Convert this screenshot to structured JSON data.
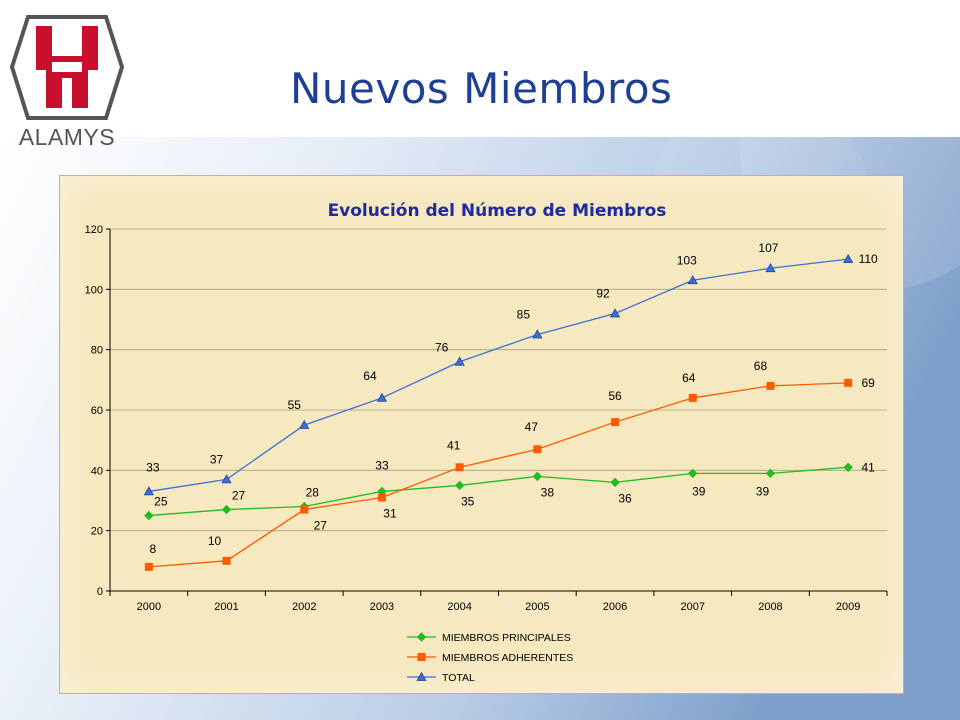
{
  "slide": {
    "title": "Nuevos Miembros",
    "logo_text": "ALAMYS"
  },
  "colors": {
    "title": "#1f3f93",
    "logo_red": "#c8102e",
    "logo_gray": "#555555",
    "chart_bg": "#f6e8bf",
    "chart_title": "#1e2aa0"
  },
  "chart_data": {
    "type": "line",
    "title": "Evolución del Número de Miembros",
    "xlabel": "",
    "ylabel": "",
    "categories": [
      "2000",
      "2001",
      "2002",
      "2003",
      "2004",
      "2005",
      "2006",
      "2007",
      "2008",
      "2009"
    ],
    "ylim": [
      0,
      120
    ],
    "yticks": [
      0,
      20,
      40,
      60,
      80,
      100,
      120
    ],
    "grid": true,
    "legend": "bottom",
    "series": [
      {
        "name": "MIEMBROS PRINCIPALES",
        "color": "#22bb22",
        "marker": "diamond",
        "values": [
          25,
          27,
          28,
          33,
          35,
          38,
          36,
          39,
          39,
          41
        ]
      },
      {
        "name": "MIEMBROS ADHERENTES",
        "color": "#ff5a00",
        "marker": "square",
        "values": [
          8,
          10,
          27,
          31,
          41,
          47,
          56,
          64,
          68,
          69
        ]
      },
      {
        "name": "TOTAL",
        "color": "#3b6fd6",
        "marker": "triangle",
        "values": [
          33,
          37,
          55,
          64,
          76,
          85,
          92,
          103,
          107,
          110
        ]
      }
    ]
  }
}
